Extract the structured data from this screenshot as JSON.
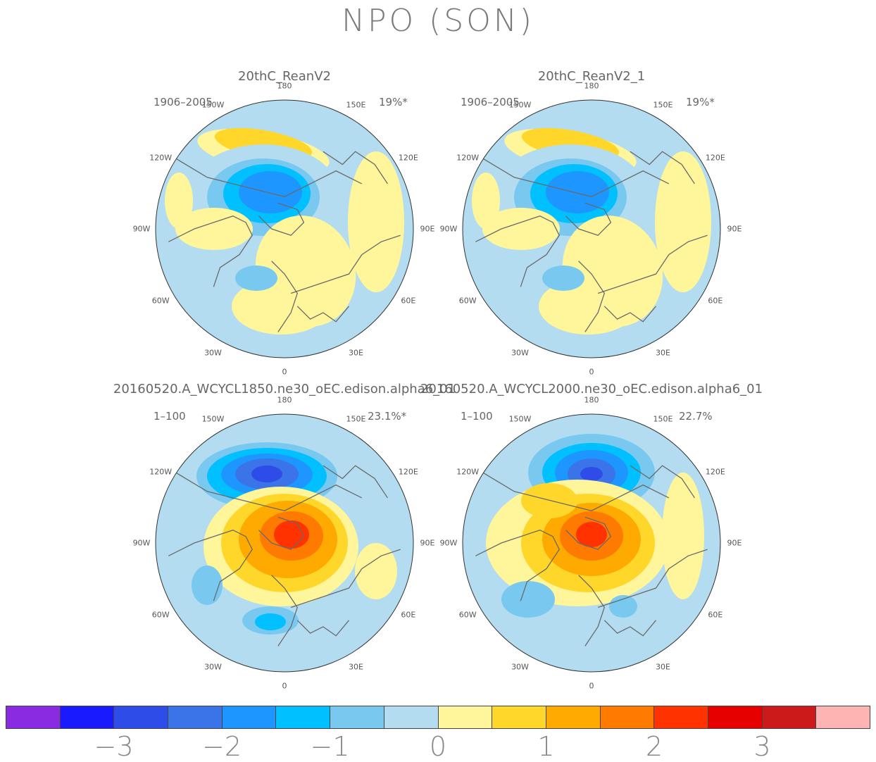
{
  "title": "NPO (SON)",
  "panels": [
    {
      "id": "p1",
      "title": "20thC_ReanV2",
      "period": "1906–2005",
      "percent": "19%*",
      "lon_labels": [
        "180",
        "150E",
        "120E",
        "90E",
        "60E",
        "30E",
        "0",
        "30W",
        "60W",
        "90W",
        "120W",
        "150W"
      ],
      "pattern": "reanalysis"
    },
    {
      "id": "p2",
      "title": "20thC_ReanV2_1",
      "period": "1906–2005",
      "percent": "19%*",
      "lon_labels": [
        "180",
        "150E",
        "120E",
        "90E",
        "60E",
        "30E",
        "0",
        "30W",
        "60W",
        "90W",
        "120W",
        "150W"
      ],
      "pattern": "reanalysis"
    },
    {
      "id": "p3",
      "title": "20160520.A_WCYCL1850.ne30_oEC.edison.alpha6_01",
      "period": "1–100",
      "percent": "23.1%*",
      "lon_labels": [
        "180",
        "150E",
        "120E",
        "90E",
        "60E",
        "30E",
        "0",
        "30W",
        "60W",
        "90W",
        "120W",
        "150W"
      ],
      "pattern": "model1850"
    },
    {
      "id": "p4",
      "title": "20160520.A_WCYCL2000.ne30_oEC.edison.alpha6_01",
      "period": "1–100",
      "percent": "22.7%",
      "lon_labels": [
        "180",
        "150E",
        "120E",
        "90E",
        "60E",
        "30E",
        "0",
        "30W",
        "60W",
        "90W",
        "120W",
        "150W"
      ],
      "pattern": "model2000"
    }
  ],
  "colorbar": {
    "colors": [
      "#8a2be2",
      "#1a1aff",
      "#2e4de8",
      "#3a74e8",
      "#1e96ff",
      "#00c0ff",
      "#78c8f0",
      "#b4dcf0",
      "#fff59a",
      "#ffd72a",
      "#ffaa00",
      "#ff7a00",
      "#ff3200",
      "#e60000",
      "#cc1a1a",
      "#ffb4b4"
    ],
    "labels": [
      "−3",
      "−2",
      "−1",
      "0",
      "1",
      "2",
      "3"
    ]
  },
  "chart_data": {
    "type": "heatmap",
    "title": "NPO (SON)",
    "projection": "north polar stereographic",
    "levels": [
      -3.5,
      -3,
      -2.5,
      -2,
      -1.5,
      -1,
      -0.5,
      0,
      0.5,
      1,
      1.5,
      2,
      2.5,
      3,
      3.5
    ],
    "colorbar_ticks": [
      -3,
      -2,
      -1,
      0,
      1,
      2,
      3
    ],
    "panels": [
      {
        "name": "20thC_ReanV2",
        "period": "1906–2005",
        "variance_explained": "19%*",
        "features": [
          {
            "region": "Arctic / Canadian Archipelago",
            "sign": "negative",
            "peak": -2
          },
          {
            "region": "North Pacific (near 180)",
            "sign": "positive",
            "peak": 0.8
          }
        ]
      },
      {
        "name": "20thC_ReanV2_1",
        "period": "1906–2005",
        "variance_explained": "19%*",
        "features": [
          {
            "region": "Arctic / Canadian Archipelago",
            "sign": "negative",
            "peak": -2
          },
          {
            "region": "North Pacific (near 180)",
            "sign": "positive",
            "peak": 0.8
          }
        ]
      },
      {
        "name": "20160520.A_WCYCL1850.ne30_oEC.edison.alpha6_01",
        "period": "1–100",
        "variance_explained": "23.1%*",
        "features": [
          {
            "region": "North Pacific",
            "sign": "negative",
            "peak": -2.8
          },
          {
            "region": "Arctic / Greenland",
            "sign": "positive",
            "peak": 2.2
          },
          {
            "region": "North Atlantic",
            "sign": "negative",
            "peak": -1.3
          }
        ]
      },
      {
        "name": "20160520.A_WCYCL2000.ne30_oEC.edison.alpha6_01",
        "period": "1–100",
        "variance_explained": "22.7%",
        "features": [
          {
            "region": "North Pacific",
            "sign": "negative",
            "peak": -2.9
          },
          {
            "region": "Arctic",
            "sign": "positive",
            "peak": 2.1
          }
        ]
      }
    ]
  }
}
